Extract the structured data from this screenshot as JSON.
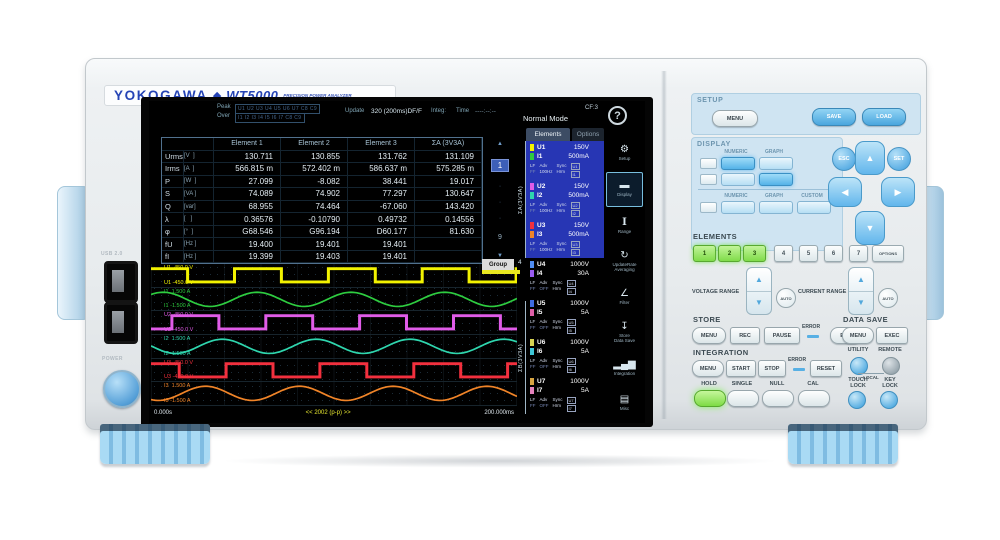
{
  "brand": {
    "logo": "YOKOGAWA",
    "diamond": "◆",
    "model": "WT5000",
    "subtitle": "PRECISION POWER ANALYZER"
  },
  "left_panel": {
    "usb_label": "USB 2.0",
    "power_label": "POWER"
  },
  "screen": {
    "header": {
      "peak_label": "Peak",
      "over_label": "Over",
      "peak_indicators": "U1 U2 U3 U4 U5 U6 U7 C8 C9",
      "over_indicators": "I1 I2 I3 I4 I5 I6 I7 C8 C9",
      "update_label": "Update",
      "update_value": "320 (200ms)DF/F",
      "integ_label": "Integ:",
      "time_label": "Time",
      "time_value": "----:--:--",
      "mode": "Normal Mode",
      "cf": "CF:3",
      "help": "?"
    },
    "tabs": [
      {
        "label": "Elements",
        "active": true
      },
      {
        "label": "Options",
        "active": false
      }
    ],
    "table": {
      "columns": [
        "Element 1",
        "Element 2",
        "Element 3",
        "ΣA (3V3A)"
      ],
      "rows": [
        {
          "name": "Urms",
          "unit": "[V  ]",
          "values": [
            "130.711",
            "130.855",
            "131.762",
            "131.109"
          ]
        },
        {
          "name": "Irms",
          "unit": "[A  ]",
          "values": [
            "566.815 m",
            "572.402 m",
            "586.637 m",
            "575.285 m"
          ]
        },
        {
          "name": "P",
          "unit": "[W  ]",
          "values": [
            "27.099",
            "-8.082",
            "38.441",
            "19.017"
          ]
        },
        {
          "name": "S",
          "unit": "[VA ]",
          "values": [
            "74.089",
            "74.902",
            "77.297",
            "130.647"
          ]
        },
        {
          "name": "Q",
          "unit": "[var]",
          "values": [
            "68.955",
            "74.464",
            "-67.060",
            "143.420"
          ]
        },
        {
          "name": "λ",
          "unit": "[   ]",
          "values": [
            "0.36576",
            "-0.10790",
            "0.49732",
            "0.14556"
          ]
        },
        {
          "name": "φ",
          "unit": "[°  ]",
          "values": [
            "G68.546",
            "G96.194",
            "D60.177",
            "81.630"
          ]
        },
        {
          "name": "fU",
          "unit": "[Hz ]",
          "values": [
            "19.400",
            "19.401",
            "19.401",
            ""
          ]
        },
        {
          "name": "fI",
          "unit": "[Hz ]",
          "values": [
            "19.399",
            "19.403",
            "19.401",
            ""
          ]
        }
      ]
    },
    "pager": {
      "up": "▲",
      "current": "1",
      "dot": "·",
      "last": "9",
      "down": "▼"
    },
    "elements_panel": {
      "group_a_label": "ΣA(3V3A)",
      "group_b_label": "ΣB(3V3A)",
      "sub_labels": {
        "lf": "LF",
        "ff": "FF",
        "adv": "Adv",
        "sync": "Sync",
        "hrm": "Hrm"
      },
      "groups": [
        {
          "num": "",
          "u": "U1",
          "u_range": "150V",
          "u_color": "#f2f200",
          "i": "I1",
          "i_range": "500mA",
          "i_color": "#2ecc40",
          "adv": "100Hz",
          "selected": true,
          "sync_u": "U1",
          "sync_i": "I1"
        },
        {
          "num": "",
          "u": "U2",
          "u_range": "150V",
          "u_color": "#e05ce8",
          "i": "I2",
          "i_range": "500mA",
          "i_color": "#2fd6ae",
          "adv": "100Hz",
          "selected": true,
          "sync_u": "U2",
          "sync_i": "I2"
        },
        {
          "num": "",
          "u": "U3",
          "u_range": "150V",
          "u_color": "#f2303e",
          "i": "I3",
          "i_range": "500mA",
          "i_color": "#f08428",
          "adv": "100Hz",
          "selected": true,
          "sync_u": "U3",
          "sync_i": "I3"
        },
        {
          "num": "4",
          "u": "U4",
          "u_range": "1000V",
          "u_color": "#4f8cf0",
          "i": "I4",
          "i_range": "30A",
          "i_color": "#9a5cf0",
          "adv": "OFF",
          "selected": false,
          "sync_u": "U4",
          "sync_i": "I4"
        },
        {
          "num": "",
          "u": "U5",
          "u_range": "1000V",
          "u_color": "#3f6ce0",
          "i": "I5",
          "i_range": "5A",
          "i_color": "#e060a8",
          "adv": "OFF",
          "selected": false,
          "sync_u": "U5",
          "sync_i": "I5"
        },
        {
          "num": "",
          "u": "U6",
          "u_range": "1000V",
          "u_color": "#d8d352",
          "i": "I6",
          "i_range": "5A",
          "i_color": "#3fc8d8",
          "adv": "OFF",
          "selected": false,
          "sync_u": "U6",
          "sync_i": "I6"
        },
        {
          "num": "",
          "u": "U7",
          "u_range": "1000V",
          "u_color": "#d8a542",
          "i": "I7",
          "i_range": "5A",
          "i_color": "#e583bd",
          "adv": "OFF",
          "selected": false,
          "sync_u": "U7",
          "sync_i": "I7"
        }
      ]
    },
    "icon_rail": [
      {
        "name": "setup",
        "glyph": "⚙",
        "label": "Setup",
        "active": false,
        "serif": false
      },
      {
        "name": "display",
        "glyph": "▬",
        "label": "Display",
        "active": true,
        "serif": false
      },
      {
        "name": "range",
        "glyph": "I",
        "label": "Range",
        "active": false,
        "serif": true
      },
      {
        "name": "update-rate",
        "glyph": "↻",
        "label": "UpdateRate\nAveraging",
        "active": false,
        "serif": false
      },
      {
        "name": "filter",
        "glyph": "∠",
        "label": "Filter",
        "active": false,
        "serif": false
      },
      {
        "name": "store",
        "glyph": "↧",
        "label": "Store\nData Save",
        "active": false,
        "serif": false
      },
      {
        "name": "integration",
        "glyph": "▂▄▆",
        "label": "Integration",
        "active": false,
        "serif": false
      },
      {
        "name": "misc",
        "glyph": "▤",
        "label": "Misc",
        "active": false,
        "serif": false
      }
    ],
    "waveforms": {
      "group_label": "Group",
      "x_start": "0.000s",
      "x_center": "<< 2002 (p-p) >>",
      "x_end": "200.000ms",
      "cycles": 3.9,
      "channels": [
        {
          "id": "U1",
          "type": "square",
          "color": "#f2f200",
          "phase": 0.11,
          "top": "450.0 V",
          "bottom": "-450.0 V"
        },
        {
          "id": "I1",
          "type": "sine",
          "color": "#2ecc40",
          "phase": 0.12,
          "top": "1.500 A",
          "bottom": "-1.500 A"
        },
        {
          "id": "U2",
          "type": "square",
          "color": "#e05ce8",
          "phase": 0.777,
          "top": "450.0 V",
          "bottom": "-450.0 V"
        },
        {
          "id": "I2",
          "type": "sine",
          "color": "#2fd6ae",
          "phase": 0.49,
          "top": "1.500 A",
          "bottom": "-1.500 A"
        },
        {
          "id": "U3",
          "type": "square",
          "color": "#f2303e",
          "phase": 0.2,
          "top": "450.0 V",
          "bottom": "-450.0 V"
        },
        {
          "id": "I3",
          "type": "sine",
          "color": "#f08428",
          "phase": 0.67,
          "top": "1.500 A",
          "bottom": "-1.500 A"
        }
      ]
    }
  },
  "controls": {
    "setup": {
      "title": "SETUP",
      "menu": "MENU",
      "save": "SAVE",
      "load": "LOAD"
    },
    "display": {
      "title": "DISPLAY",
      "rows": [
        {
          "labels": [
            "NUMERIC",
            "GRAPH"
          ],
          "buttons": [
            {
              "label": "NUMERIC",
              "lit": true
            },
            {
              "label": "GRAPH",
              "lit": false
            }
          ]
        },
        {
          "labels": [],
          "buttons": [
            {
              "label": "NUMERIC",
              "lit": false
            },
            {
              "label": "GRAPH",
              "lit": true
            }
          ]
        },
        {
          "labels": [
            "NUMERIC",
            "GRAPH",
            "CUSTOM"
          ],
          "buttons": [
            {
              "label": "NUMERIC",
              "lit": false
            },
            {
              "label": "GRAPH",
              "lit": false
            },
            {
              "label": "CUSTOM",
              "lit": false
            }
          ]
        }
      ]
    },
    "nav": {
      "esc": "ESC",
      "set": "SET",
      "up": "▲",
      "down": "▼",
      "left": "◀",
      "right": "▶"
    },
    "elements": {
      "title": "ELEMENTS",
      "buttons": [
        "1",
        "2",
        "3",
        "4",
        "5",
        "6",
        "7"
      ],
      "lit": [
        "1",
        "2",
        "3"
      ],
      "options": "OPTIONS"
    },
    "voltage_range": {
      "label": "VOLTAGE RANGE",
      "auto": "AUTO",
      "up": "▲",
      "down": "▼"
    },
    "current_range": {
      "label": "CURRENT RANGE",
      "auto": "AUTO",
      "up": "▲",
      "down": "▼"
    },
    "store": {
      "title": "STORE",
      "menu": "MENU",
      "rec": "REC",
      "pause": "PAUSE",
      "error": "ERROR",
      "end": "END"
    },
    "data_save": {
      "title": "DATA SAVE",
      "menu": "MENU",
      "exec": "EXEC"
    },
    "integration": {
      "title": "INTEGRATION",
      "menu": "MENU",
      "start": "START",
      "stop": "STOP",
      "error": "ERROR",
      "reset": "RESET"
    },
    "utility": {
      "label": "UTILITY",
      "local": "LOCAL"
    },
    "remote": {
      "label": "REMOTE"
    },
    "hold": {
      "label": "HOLD"
    },
    "single": {
      "label": "SINGLE"
    },
    "null_btn": {
      "label": "NULL"
    },
    "cal": {
      "label": "CAL"
    },
    "touch_lock": {
      "label": "TOUCH\nLOCK"
    },
    "key_lock": {
      "label": "KEY\nLOCK"
    }
  }
}
